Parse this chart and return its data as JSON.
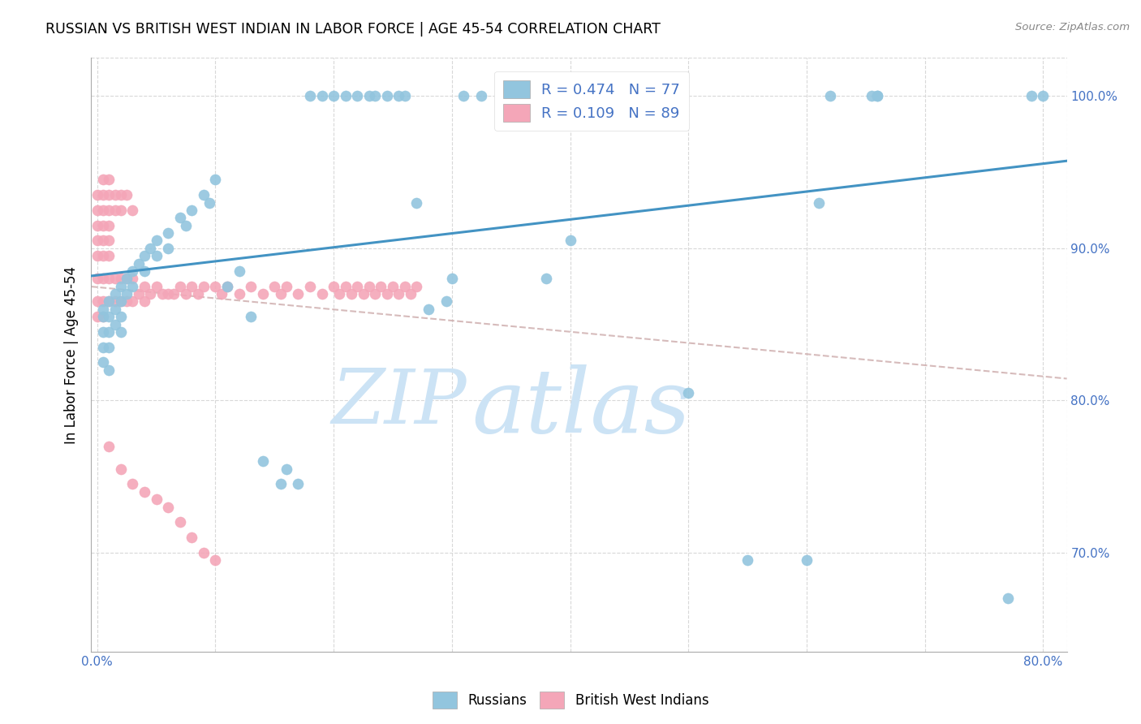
{
  "title": "RUSSIAN VS BRITISH WEST INDIAN IN LABOR FORCE | AGE 45-54 CORRELATION CHART",
  "source": "Source: ZipAtlas.com",
  "ylabel": "In Labor Force | Age 45-54",
  "xlim": [
    -0.005,
    0.82
  ],
  "ylim": [
    0.635,
    1.025
  ],
  "xticks": [
    0.0,
    0.1,
    0.2,
    0.3,
    0.4,
    0.5,
    0.6,
    0.7,
    0.8
  ],
  "xticklabels": [
    "0.0%",
    "",
    "",
    "",
    "",
    "",
    "",
    "",
    "80.0%"
  ],
  "yticks": [
    0.7,
    0.8,
    0.9,
    1.0
  ],
  "yticklabels": [
    "70.0%",
    "80.0%",
    "90.0%",
    "100.0%"
  ],
  "blue_color": "#92c5de",
  "pink_color": "#f4a6b8",
  "blue_line_color": "#4393c3",
  "pink_line_color": "#d6a0aa",
  "grid_color": "#d8d8d8",
  "legend_R_blue": "R = 0.474",
  "legend_N_blue": "N = 77",
  "legend_R_pink": "R = 0.109",
  "legend_N_pink": "N = 89",
  "watermark_zip": "ZIP",
  "watermark_atlas": "atlas",
  "watermark_color": "#cce3f5",
  "blue_x": [
    0.005,
    0.005,
    0.005,
    0.005,
    0.005,
    0.01,
    0.01,
    0.01,
    0.01,
    0.01,
    0.015,
    0.015,
    0.015,
    0.02,
    0.02,
    0.02,
    0.02,
    0.025,
    0.025,
    0.03,
    0.03,
    0.035,
    0.04,
    0.04,
    0.045,
    0.05,
    0.05,
    0.06,
    0.06,
    0.07,
    0.075,
    0.08,
    0.09,
    0.095,
    0.1,
    0.11,
    0.12,
    0.13,
    0.14,
    0.155,
    0.16,
    0.17,
    0.18,
    0.19,
    0.2,
    0.21,
    0.22,
    0.23,
    0.235,
    0.245,
    0.255,
    0.26,
    0.27,
    0.28,
    0.295,
    0.3,
    0.31,
    0.325,
    0.345,
    0.38,
    0.4,
    0.405,
    0.41,
    0.415,
    0.42,
    0.43,
    0.5,
    0.55,
    0.6,
    0.61,
    0.62,
    0.655,
    0.66,
    0.66,
    0.77,
    0.79,
    0.8
  ],
  "blue_y": [
    0.855,
    0.86,
    0.845,
    0.835,
    0.825,
    0.865,
    0.855,
    0.845,
    0.835,
    0.82,
    0.87,
    0.86,
    0.85,
    0.875,
    0.865,
    0.855,
    0.845,
    0.88,
    0.87,
    0.885,
    0.875,
    0.89,
    0.895,
    0.885,
    0.9,
    0.905,
    0.895,
    0.91,
    0.9,
    0.92,
    0.915,
    0.925,
    0.935,
    0.93,
    0.945,
    0.875,
    0.885,
    0.855,
    0.76,
    0.745,
    0.755,
    0.745,
    1.0,
    1.0,
    1.0,
    1.0,
    1.0,
    1.0,
    1.0,
    1.0,
    1.0,
    1.0,
    0.93,
    0.86,
    0.865,
    0.88,
    1.0,
    1.0,
    1.0,
    0.88,
    0.905,
    1.0,
    1.0,
    1.0,
    1.0,
    1.0,
    0.805,
    0.695,
    0.695,
    0.93,
    1.0,
    1.0,
    1.0,
    1.0,
    0.67,
    1.0,
    1.0
  ],
  "pink_x": [
    0.0,
    0.0,
    0.0,
    0.0,
    0.0,
    0.0,
    0.0,
    0.0,
    0.005,
    0.005,
    0.005,
    0.005,
    0.005,
    0.005,
    0.005,
    0.005,
    0.005,
    0.01,
    0.01,
    0.01,
    0.01,
    0.01,
    0.01,
    0.01,
    0.01,
    0.015,
    0.015,
    0.015,
    0.015,
    0.02,
    0.02,
    0.02,
    0.02,
    0.025,
    0.025,
    0.025,
    0.03,
    0.03,
    0.03,
    0.035,
    0.04,
    0.04,
    0.045,
    0.05,
    0.055,
    0.06,
    0.065,
    0.07,
    0.075,
    0.08,
    0.085,
    0.09,
    0.1,
    0.105,
    0.11,
    0.12,
    0.13,
    0.14,
    0.15,
    0.155,
    0.16,
    0.17,
    0.18,
    0.19,
    0.2,
    0.205,
    0.21,
    0.215,
    0.22,
    0.225,
    0.23,
    0.235,
    0.24,
    0.245,
    0.25,
    0.255,
    0.26,
    0.265,
    0.27,
    0.01,
    0.02,
    0.03,
    0.04,
    0.05,
    0.06,
    0.07,
    0.08,
    0.09,
    0.1
  ],
  "pink_y": [
    0.935,
    0.925,
    0.915,
    0.905,
    0.895,
    0.88,
    0.865,
    0.855,
    0.945,
    0.935,
    0.925,
    0.915,
    0.905,
    0.895,
    0.88,
    0.865,
    0.855,
    0.945,
    0.935,
    0.925,
    0.915,
    0.905,
    0.895,
    0.88,
    0.865,
    0.935,
    0.925,
    0.88,
    0.865,
    0.935,
    0.925,
    0.88,
    0.865,
    0.935,
    0.88,
    0.865,
    0.925,
    0.88,
    0.865,
    0.87,
    0.875,
    0.865,
    0.87,
    0.875,
    0.87,
    0.87,
    0.87,
    0.875,
    0.87,
    0.875,
    0.87,
    0.875,
    0.875,
    0.87,
    0.875,
    0.87,
    0.875,
    0.87,
    0.875,
    0.87,
    0.875,
    0.87,
    0.875,
    0.87,
    0.875,
    0.87,
    0.875,
    0.87,
    0.875,
    0.87,
    0.875,
    0.87,
    0.875,
    0.87,
    0.875,
    0.87,
    0.875,
    0.87,
    0.875,
    0.77,
    0.755,
    0.745,
    0.74,
    0.735,
    0.73,
    0.72,
    0.71,
    0.7,
    0.695
  ]
}
